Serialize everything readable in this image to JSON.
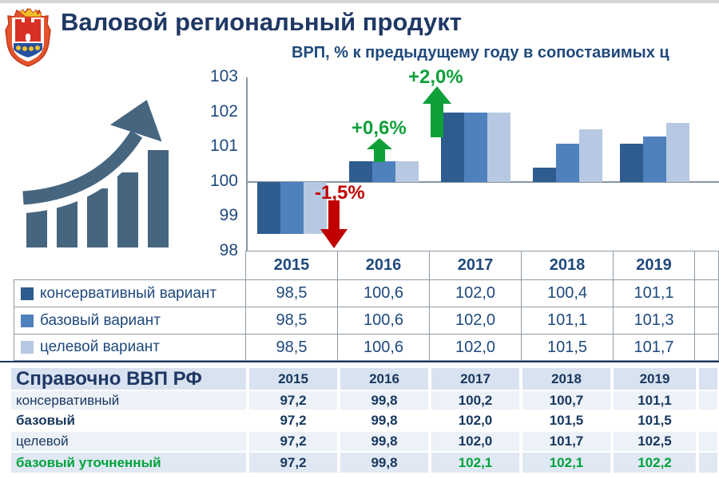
{
  "slide": {
    "title": "Валовой региональный продукт",
    "subtitle": "ВРП, % к предыдущему году в сопоставимых ц"
  },
  "colors": {
    "title_navy": "#1F3864",
    "text_blue": "#1F497D",
    "bar_conservative": "#2E5C8F",
    "bar_base": "#4F81BD",
    "bar_target": "#B7C9E2",
    "annotation_green": "#0FA03A",
    "annotation_red": "#C00000",
    "table_green": "#00A33C",
    "icon_slate": "#46657F"
  },
  "chart_data": {
    "type": "bar",
    "title": "ВРП, % к предыдущему году в сопоставимых ц",
    "categories": [
      "2015",
      "2016",
      "2017",
      "2018",
      "2019"
    ],
    "series": [
      {
        "name": "консервативный вариант",
        "color": "#2E5C8F",
        "values": [
          98.5,
          100.6,
          102.0,
          100.4,
          101.1
        ]
      },
      {
        "name": "базовый вариант",
        "color": "#4F81BD",
        "values": [
          98.5,
          100.6,
          102.0,
          101.1,
          101.3
        ]
      },
      {
        "name": "целевой вариант",
        "color": "#B7C9E2",
        "values": [
          98.5,
          100.6,
          102.0,
          101.5,
          101.7
        ]
      }
    ],
    "baseline": 100,
    "ylim": [
      98,
      103
    ],
    "yticks": [
      103,
      102,
      101,
      100,
      99,
      98
    ],
    "grid": false,
    "legend_position": "left-table",
    "annotations": [
      {
        "text": "-1,5%",
        "direction": "down",
        "color": "#C00000",
        "at_category": "2015"
      },
      {
        "text": "+0,6%",
        "direction": "up",
        "color": "#0FA03A",
        "at_category": "2016"
      },
      {
        "text": "+2,0%",
        "direction": "up",
        "color": "#0FA03A",
        "at_category": "2017"
      }
    ]
  },
  "grp_table": {
    "years": [
      "2015",
      "2016",
      "2017",
      "2018",
      "2019"
    ],
    "rows": [
      {
        "label": "консервативный вариант",
        "swatch": "#2E5C8F",
        "values": [
          "98,5",
          "100,6",
          "102,0",
          "100,4",
          "101,1"
        ]
      },
      {
        "label": "базовый вариант",
        "swatch": "#4F81BD",
        "values": [
          "98,5",
          "100,6",
          "102,0",
          "101,1",
          "101,3"
        ]
      },
      {
        "label": "целевой вариант",
        "swatch": "#B7C9E2",
        "values": [
          "98,5",
          "100,6",
          "102,0",
          "101,5",
          "101,7"
        ]
      }
    ]
  },
  "gdp_table": {
    "title": "Справочно  ВВП РФ",
    "years": [
      "2015",
      "2016",
      "2017",
      "2018",
      "2019"
    ],
    "rows": [
      {
        "label": "консервативный",
        "values": [
          "97,2",
          "99,8",
          "100,2",
          "100,7",
          "101,1"
        ]
      },
      {
        "label": "базовый",
        "values": [
          "97,2",
          "99,8",
          "102,0",
          "101,5",
          "101,5"
        ]
      },
      {
        "label": "целевой",
        "values": [
          "97,2",
          "99,8",
          "102,0",
          "101,7",
          "102,5"
        ]
      },
      {
        "label": "базовый  уточненный",
        "values": [
          "97,2",
          "99,8",
          "102,1",
          "102,1",
          "102,2"
        ]
      }
    ]
  }
}
